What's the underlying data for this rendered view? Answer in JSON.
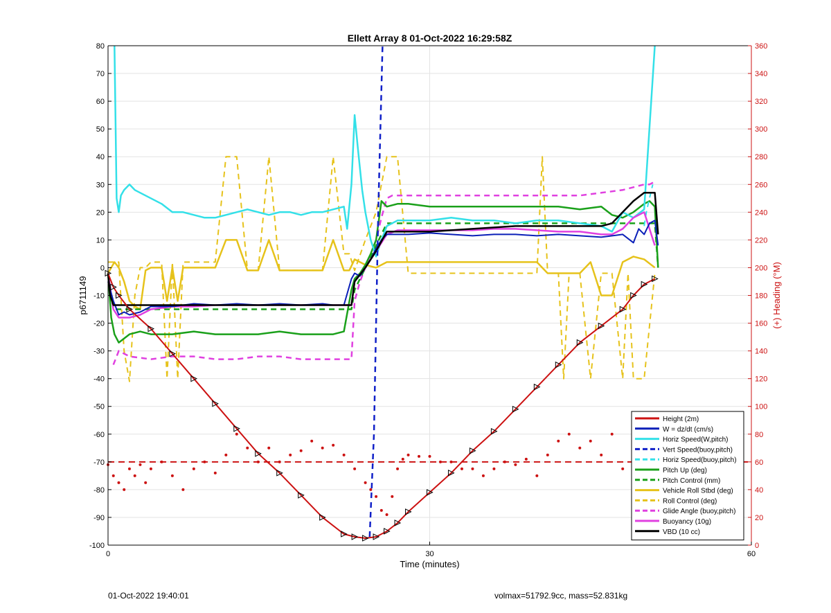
{
  "chart_data": {
    "type": "line",
    "title": "Ellett Array 8 01-Oct-2022 16:29:58Z",
    "xlabel": "Time (minutes)",
    "ylabel": "p6711149",
    "y2label": "(+) Heading (°M)",
    "xlim": [
      0,
      60
    ],
    "ylim": [
      -100,
      80
    ],
    "y2lim": [
      0,
      360
    ],
    "xticks": [
      0,
      30,
      60
    ],
    "yticks": [
      -100,
      -90,
      -80,
      -70,
      -60,
      -50,
      -40,
      -30,
      -20,
      -10,
      0,
      10,
      20,
      30,
      40,
      50,
      60,
      70,
      80
    ],
    "y2ticks": [
      0,
      20,
      40,
      60,
      80,
      100,
      120,
      140,
      160,
      180,
      200,
      220,
      240,
      260,
      280,
      300,
      320,
      340,
      360
    ],
    "grid": true,
    "legend_position": "bottom-right",
    "colors": {
      "height": "#cc1111",
      "w": "#0a1fb8",
      "horiz": "#33e0e8",
      "vert": "#1020c8",
      "pitch": "#1aa01a",
      "roll": "#e6c21a",
      "glide": "#e040e0",
      "buoy": "#e040e0",
      "vbd": "#000000",
      "heading": "#cc1111",
      "axis2": "#cc1111"
    },
    "series": [
      {
        "name": "Height (2m)",
        "x": [
          0,
          0.5,
          1,
          2,
          4,
          6,
          8,
          10,
          12,
          14,
          16,
          18,
          20,
          22,
          23,
          24,
          25,
          26,
          27,
          28,
          30,
          32,
          34,
          36,
          38,
          40,
          42,
          44,
          46,
          48,
          49,
          50,
          51
        ],
        "y": [
          -2,
          -7,
          -10,
          -15,
          -22,
          -31,
          -40,
          -49,
          -58,
          -67,
          -74,
          -82,
          -90,
          -96,
          -97,
          -97.5,
          -97,
          -95,
          -92,
          -88,
          -81,
          -74,
          -66,
          -59,
          -51,
          -43,
          -35,
          -27,
          -21,
          -15,
          -10,
          -6,
          -4
        ]
      },
      {
        "name": "W = dz/dt (cm/s)",
        "x": [
          0,
          0.5,
          1,
          1.5,
          2,
          3,
          4,
          6,
          8,
          10,
          12,
          14,
          16,
          18,
          20,
          21,
          22,
          22.7,
          23,
          23.5,
          24,
          24.5,
          25,
          25.5,
          26,
          27,
          28,
          30,
          32,
          34,
          36,
          38,
          40,
          42,
          44,
          46,
          48,
          49,
          49.5,
          50,
          50.5,
          51,
          51.3
        ],
        "y": [
          -5,
          -12,
          -17,
          -16,
          -17,
          -16,
          -14,
          -14,
          -13,
          -13.5,
          -13,
          -13.5,
          -13,
          -13.5,
          -13,
          -13.5,
          -13.5,
          -4,
          -2,
          -3,
          0,
          3,
          7,
          10,
          12,
          12,
          12,
          12.5,
          12,
          11.5,
          12,
          12,
          11.5,
          12,
          11.5,
          11,
          12,
          9,
          14,
          12,
          16,
          17,
          8
        ]
      },
      {
        "name": "Horiz Speed(W,pitch)",
        "x": [
          0.6,
          0.8,
          1,
          1.2,
          1.5,
          2,
          2.5,
          3,
          4,
          5,
          6,
          7,
          8,
          9,
          10,
          11,
          12,
          13,
          14,
          15,
          16,
          17,
          18,
          19,
          20,
          21,
          22,
          22.3,
          22.7,
          23,
          23.3,
          23.7,
          24,
          24.5,
          25,
          25.5,
          26,
          27,
          28,
          30,
          32,
          34,
          36,
          38,
          40,
          42,
          44,
          46,
          47,
          48,
          49,
          50,
          51
        ],
        "y": [
          80,
          25,
          20,
          26,
          28,
          30,
          28,
          27,
          25,
          23,
          20,
          20,
          19,
          18,
          18,
          19,
          20,
          21,
          20,
          19,
          20,
          20,
          19,
          20,
          20,
          21,
          22,
          14,
          30,
          55,
          43,
          28,
          20,
          10,
          4,
          10,
          15,
          17,
          17,
          17,
          18,
          17,
          17,
          16,
          17,
          17,
          16,
          15,
          13,
          20,
          18,
          21,
          80
        ]
      },
      {
        "name": "Vert Speed(buoy,pitch)",
        "x": [
          24.4,
          24.8,
          25.2,
          25.6
        ],
        "y": [
          -97,
          -60,
          20,
          80
        ]
      },
      {
        "name": "Horiz Speed(buoy,pitch)",
        "x": [
          50,
          50.2,
          50.5,
          50.8
        ],
        "y": [
          15,
          20,
          25,
          30
        ]
      },
      {
        "name": "Pitch Up (deg)",
        "x": [
          0,
          0.3,
          0.6,
          1,
          2,
          3,
          4,
          6,
          8,
          10,
          12,
          14,
          16,
          18,
          20,
          21,
          22,
          22.7,
          23,
          23.5,
          24,
          24.5,
          25,
          25.5,
          26,
          27,
          28,
          30,
          32,
          34,
          36,
          38,
          40,
          42,
          44,
          46,
          47,
          48,
          49,
          50,
          50.5,
          51,
          51.3
        ],
        "y": [
          -2,
          -18,
          -24,
          -27,
          -24,
          -23,
          -24,
          -24,
          -23,
          -24,
          -24,
          -24,
          -23,
          -24,
          -24,
          -24,
          -23,
          -8,
          -4,
          -2,
          1,
          5,
          10,
          24,
          22,
          23,
          23,
          22,
          22,
          22,
          22,
          22,
          22,
          22,
          21,
          22,
          19,
          18,
          20,
          23,
          24,
          22,
          0
        ]
      },
      {
        "name": "Pitch Control (mm)",
        "x": [
          0,
          0.5,
          1,
          2,
          4,
          6,
          8,
          10,
          12,
          14,
          16,
          18,
          20,
          22,
          22.7,
          23,
          24,
          25,
          26,
          28,
          30,
          32,
          34,
          36,
          38,
          40,
          42,
          44,
          46,
          48,
          49,
          50,
          51,
          51.3
        ],
        "y": [
          -2,
          -15,
          -15,
          -15,
          -15,
          -15,
          -15,
          -15,
          -15,
          -15,
          -15,
          -15,
          -15,
          -15,
          -15,
          -8,
          0,
          8,
          16,
          16,
          16,
          16,
          16,
          16,
          16,
          16,
          16,
          16,
          16,
          16,
          16,
          16,
          16,
          0
        ]
      },
      {
        "name": "Vehicle Roll Stbd (deg)",
        "x": [
          0,
          0.3,
          0.6,
          1,
          1.5,
          2,
          2.5,
          3,
          3.5,
          4,
          5,
          5.5,
          6,
          6.5,
          7,
          8,
          10,
          11,
          12,
          13,
          14,
          15,
          16,
          17,
          18,
          19,
          20,
          21,
          22,
          22.5,
          23,
          24,
          25,
          26,
          27,
          28,
          30,
          32,
          34,
          36,
          38,
          40,
          41,
          42,
          44,
          45,
          46,
          47,
          48,
          49,
          50,
          51
        ],
        "y": [
          -2,
          0,
          2,
          0,
          -5,
          -12,
          -14,
          -15,
          -1,
          0,
          0,
          -12,
          0,
          -12,
          0,
          0,
          0,
          10,
          10,
          -1,
          -1,
          10,
          -1,
          -1,
          -1,
          -1,
          -1,
          10,
          -1,
          -1,
          3,
          1,
          0,
          2,
          2,
          2,
          2,
          2,
          2,
          2,
          2,
          2,
          -2,
          -2,
          -2,
          2,
          -10,
          -10,
          2,
          4,
          3,
          0
        ]
      },
      {
        "name": "Roll Control (deg)",
        "x": [
          0,
          0.5,
          1,
          1.5,
          2,
          2.5,
          3,
          3.5,
          4,
          5,
          5.5,
          6,
          6.5,
          7,
          8,
          10,
          11,
          12,
          13,
          14,
          15,
          16,
          17,
          18,
          19,
          20,
          21,
          22,
          22.5,
          23,
          24,
          25,
          26,
          27,
          28,
          30,
          32,
          34,
          36,
          38,
          40,
          40.5,
          41,
          42,
          42.5,
          43,
          44,
          45,
          46,
          47,
          48,
          48.5,
          49,
          50,
          51
        ],
        "y": [
          2,
          2,
          2,
          -30,
          -41,
          -10,
          0,
          0,
          2,
          2,
          -40,
          2,
          -40,
          2,
          2,
          2,
          40,
          40,
          -1,
          -1,
          40,
          -1,
          -1,
          -1,
          -1,
          -1,
          40,
          5,
          5,
          -1,
          10,
          20,
          40,
          40,
          -2,
          -2,
          -2,
          -2,
          -2,
          -2,
          -2,
          40,
          -2,
          -2,
          -40,
          -2,
          -2,
          -40,
          -2,
          -2,
          -40,
          -2,
          -40,
          -40,
          -2
        ]
      },
      {
        "name": "Glide Angle (buoy,pitch)",
        "x": [
          0.5,
          0.8,
          1,
          2,
          4,
          6,
          8,
          10,
          12,
          14,
          16,
          18,
          20,
          22,
          22.7,
          23,
          23.5,
          24,
          24.5,
          25,
          25.5,
          26,
          26.5,
          27,
          28,
          30,
          32,
          34,
          36,
          38,
          40,
          42,
          44,
          46,
          48,
          49,
          50,
          50.5,
          51
        ],
        "y": [
          -35,
          -32,
          -30,
          -32,
          -33,
          -32,
          -32,
          -33,
          -33,
          -32,
          -32,
          -33,
          -33,
          -33,
          -33,
          -12,
          -5,
          0,
          5,
          10,
          18,
          25,
          26,
          26,
          26,
          26,
          26,
          26,
          26,
          26,
          26,
          26,
          26,
          27,
          28,
          29,
          30,
          30,
          31
        ]
      },
      {
        "name": "Buoyancy (10g)",
        "x": [
          0,
          0.5,
          1,
          2,
          3,
          4,
          6,
          8,
          10,
          12,
          14,
          16,
          18,
          20,
          22,
          22.7,
          23,
          24,
          25,
          26,
          27,
          28,
          30,
          32,
          34,
          36,
          38,
          40,
          42,
          44,
          46,
          47,
          48,
          49,
          50,
          51
        ],
        "y": [
          -2,
          -15,
          -18,
          -18,
          -17,
          -15,
          -14,
          -14,
          -13.5,
          -13.5,
          -13.5,
          -13.5,
          -13.5,
          -13.5,
          -13.5,
          -13.5,
          -5,
          0,
          6,
          12,
          13.5,
          13.5,
          13.5,
          13.5,
          13.5,
          14,
          14,
          13.5,
          13,
          13,
          12,
          12,
          14,
          18,
          20,
          8
        ]
      },
      {
        "name": "VBD (10 cc)",
        "x": [
          0,
          0.2,
          0.5,
          1,
          2,
          4,
          6,
          8,
          10,
          12,
          14,
          16,
          18,
          20,
          22,
          22.7,
          23,
          24,
          25,
          26,
          27,
          28,
          30,
          32,
          34,
          36,
          38,
          40,
          42,
          44,
          46,
          47,
          48,
          49,
          50,
          51,
          51.3
        ],
        "y": [
          -2,
          -10,
          -13.5,
          -13.5,
          -13.5,
          -13.5,
          -13.5,
          -13.5,
          -13.5,
          -13.5,
          -13.5,
          -13.5,
          -13.5,
          -13.5,
          -13.5,
          -13.5,
          -5,
          0,
          6,
          13,
          13,
          13,
          13,
          13.5,
          14,
          14.5,
          15,
          15,
          15,
          15,
          15,
          16,
          20,
          24,
          27,
          27,
          12
        ]
      }
    ],
    "heading": {
      "name": "Heading (°M)",
      "axis": "right",
      "dashed_reference": 60,
      "x": [
        0,
        0.5,
        1,
        1.5,
        2,
        2.5,
        3,
        3.5,
        4,
        5,
        6,
        7,
        8,
        9,
        10,
        11,
        12,
        13,
        14,
        15,
        16,
        17,
        18,
        19,
        20,
        21,
        22,
        23,
        24,
        24.5,
        25,
        25.5,
        26,
        26.5,
        27,
        27.5,
        28,
        29,
        30,
        31,
        32,
        33,
        34,
        35,
        36,
        37,
        38,
        39,
        40,
        41,
        42,
        43,
        44,
        45,
        46,
        47,
        48,
        49,
        50
      ],
      "y": [
        58,
        50,
        45,
        40,
        55,
        50,
        58,
        45,
        55,
        60,
        50,
        40,
        55,
        60,
        52,
        65,
        80,
        70,
        60,
        70,
        60,
        65,
        68,
        75,
        70,
        72,
        65,
        55,
        45,
        40,
        35,
        25,
        22,
        35,
        55,
        62,
        65,
        64,
        64,
        60,
        60,
        55,
        55,
        50,
        55,
        60,
        58,
        62,
        50,
        65,
        75,
        80,
        70,
        75,
        65,
        80,
        55,
        60,
        55
      ]
    },
    "annotations": [
      {
        "text": "01-Oct-2022 19:40:01"
      },
      {
        "text": "volmax=51792.9cc, mass=52.831kg"
      }
    ]
  }
}
